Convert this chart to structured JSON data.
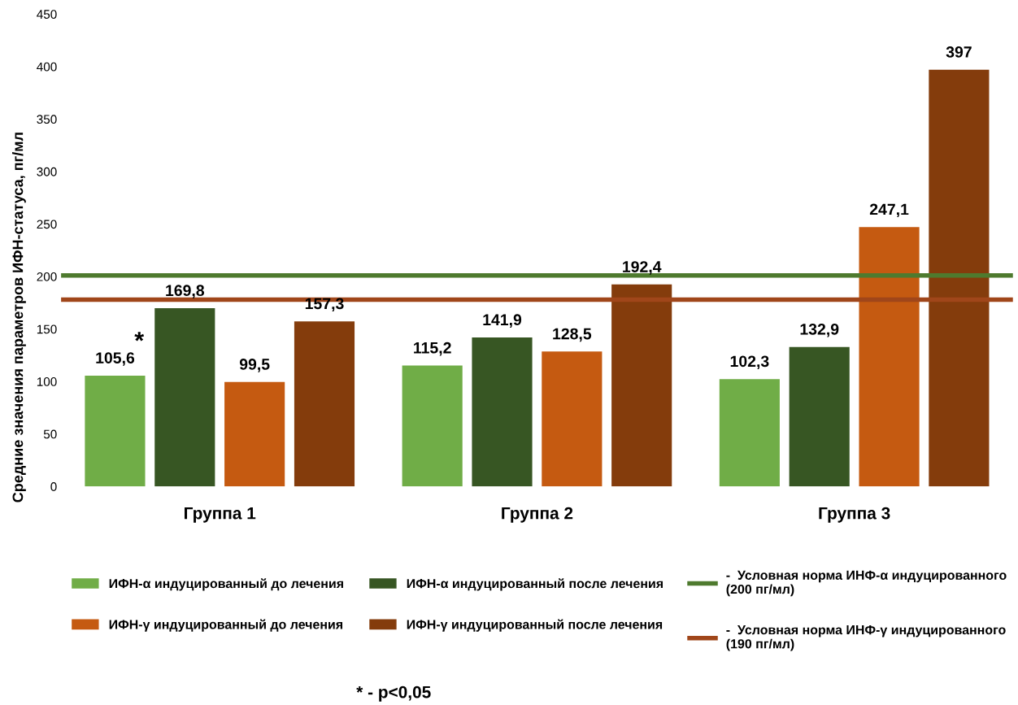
{
  "chart_data": {
    "type": "bar",
    "ylabel": "Средние значения параметров ИФН-статуса, пг/мл",
    "categories": [
      "Группа 1",
      "Группа 2",
      "Группа 3"
    ],
    "series": [
      {
        "name": "ИФН-α индуцированный до лечения",
        "color": "#70ad47",
        "values": [
          105.6,
          115.2,
          102.3
        ],
        "value_labels": [
          "105,6",
          "115,2",
          "102,3"
        ]
      },
      {
        "name": "ИФН-α индуцированный после лечения",
        "color": "#375623",
        "values": [
          169.8,
          141.9,
          132.9
        ],
        "value_labels": [
          "169,8",
          "141,9",
          "132,9"
        ]
      },
      {
        "name": "ИФН-γ индуцированный до лечения",
        "color": "#c55a11",
        "values": [
          99.5,
          128.5,
          247.1
        ],
        "value_labels": [
          "99,5",
          "128,5",
          "247,1"
        ]
      },
      {
        "name": "ИФН-γ индуцированный после лечения",
        "color": "#843c0c",
        "values": [
          157.3,
          192.4,
          397
        ],
        "value_labels": [
          "157,3",
          "192,4",
          "397"
        ]
      }
    ],
    "ref_lines": [
      {
        "axis": "y",
        "value": 201,
        "label": "-  Условная норма ИНФ-α индуцированного\n(200 пг/мл)",
        "color": "#4e7a2e"
      },
      {
        "axis": "y",
        "value": 178,
        "label": "-  Условная норма ИНФ-γ индуцированного\n(190 пг/мл)",
        "color": "#a0461a"
      }
    ],
    "ylim": [
      0,
      450
    ],
    "yticks": [
      0,
      50,
      100,
      150,
      200,
      250,
      300,
      350,
      400,
      450
    ],
    "grid": false,
    "legend": "bottom",
    "annotations": [
      "*",
      "* - p<0,05"
    ]
  }
}
